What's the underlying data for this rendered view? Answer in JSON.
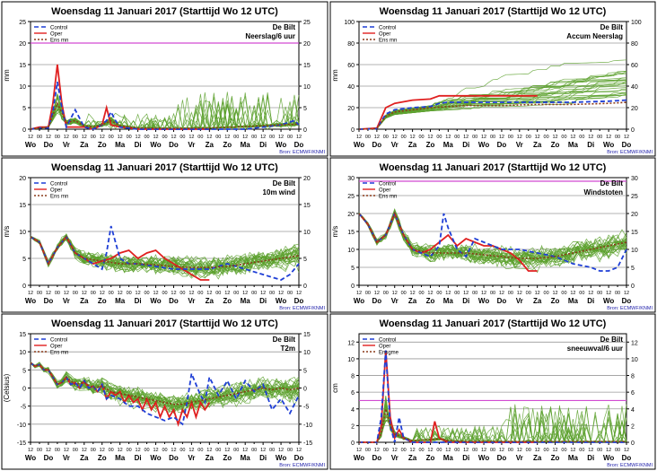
{
  "chart_data": [
    {
      "type": "line",
      "title": "Woensdag 11 Januari 2017    (Starttijd Wo 12 UTC)",
      "station": "De Bilt",
      "variable": "Neerslag/6 uur",
      "ylabel": "mm",
      "source": "Bron: ECMWF/KNMI",
      "ylim": [
        0,
        25
      ],
      "yticks": [
        0,
        5,
        10,
        15,
        20,
        25
      ],
      "threshold": 20,
      "legend": [
        "Control",
        "Oper",
        "Ens mn"
      ],
      "days": [
        "Wo",
        "Do",
        "Vr",
        "Za",
        "Zo",
        "Ma",
        "Di",
        "Wo",
        "Do",
        "Vr",
        "Za",
        "Zo",
        "Ma",
        "Di",
        "Wo",
        "Do"
      ],
      "hours": [
        "12",
        "00",
        "12"
      ],
      "series": [
        {
          "name": "Oper",
          "x": [
            0,
            0.5,
            1,
            1.25,
            1.5,
            1.75,
            2,
            2.5,
            3,
            3.5,
            4,
            4.25,
            4.5,
            5,
            5.5,
            6,
            7,
            8,
            9,
            10
          ],
          "values": [
            0,
            0.5,
            0.5,
            6,
            15,
            6,
            0.5,
            0.5,
            0.5,
            0,
            1,
            5,
            1,
            0.5,
            0.3,
            0,
            0,
            0,
            0,
            0
          ]
        },
        {
          "name": "Control",
          "x": [
            0,
            0.5,
            1,
            1.25,
            1.5,
            1.75,
            2,
            2.5,
            3,
            3.5,
            4,
            4.25,
            4.5,
            4.75,
            5,
            6,
            8,
            10,
            12,
            13,
            14,
            14.75,
            15
          ],
          "values": [
            0,
            0.3,
            0.3,
            4,
            11,
            5,
            0.5,
            4.5,
            0.5,
            0,
            1,
            2,
            4,
            2,
            0.5,
            0,
            0,
            0,
            0,
            0.5,
            1,
            2,
            1
          ]
        },
        {
          "name": "Ens mn",
          "x": [
            0,
            0.5,
            1,
            1.5,
            2,
            2.5,
            3,
            3.5,
            4,
            4.5,
            5,
            6,
            8,
            10,
            12,
            14,
            15
          ],
          "values": [
            0,
            0.3,
            0.5,
            6,
            1.5,
            2,
            0.8,
            0.5,
            1,
            2,
            0.8,
            0.3,
            0.2,
            0.3,
            0.6,
            1,
            1.2
          ]
        }
      ]
    },
    {
      "type": "line",
      "title": "Woensdag 11 Januari 2017    (Starttijd Wo 12 UTC)",
      "station": "De Bilt",
      "variable": "Accum Neerslag",
      "ylabel": "mm",
      "source": "Bron: ECMWF/KNMI",
      "ylim": [
        0,
        100
      ],
      "yticks": [
        0,
        20,
        40,
        60,
        80,
        100
      ],
      "legend": [
        "Control",
        "Oper",
        "Ens mn"
      ],
      "days": [
        "Wo",
        "Do",
        "Vr",
        "Za",
        "Zo",
        "Ma",
        "Di",
        "Wo",
        "Do",
        "Vr",
        "Za",
        "Zo",
        "Ma",
        "Di",
        "Wo",
        "Do"
      ],
      "hours": [
        "12",
        "00",
        "12"
      ],
      "series": [
        {
          "name": "Oper",
          "x": [
            0,
            1,
            1.5,
            2,
            3,
            4,
            4.5,
            5,
            10
          ],
          "values": [
            0,
            1,
            20,
            24,
            27,
            28,
            31,
            31,
            31
          ]
        },
        {
          "name": "Control",
          "x": [
            0,
            1,
            1.5,
            2,
            3,
            4,
            4.5,
            5,
            6,
            8,
            10,
            12,
            14,
            15
          ],
          "values": [
            0,
            0.5,
            14,
            18,
            20,
            21,
            24,
            25,
            25,
            25,
            25,
            25,
            26,
            27
          ]
        },
        {
          "name": "Ens mn",
          "x": [
            0,
            1,
            1.5,
            2,
            3,
            4,
            5,
            6,
            8,
            10,
            12,
            14,
            15
          ],
          "values": [
            0,
            0.5,
            12,
            16,
            18,
            20,
            21,
            22,
            22,
            23,
            23,
            24,
            25
          ]
        }
      ]
    },
    {
      "type": "line",
      "title": "Woensdag 11 Januari 2017    (Starttijd Wo 12 UTC)",
      "station": "De Bilt",
      "variable": "10m wind",
      "ylabel": "m/s",
      "source": "Bron: ECMWF/KNMI",
      "ylim": [
        0,
        20
      ],
      "yticks": [
        0,
        5,
        10,
        15,
        20
      ],
      "legend": [
        "Control",
        "Oper",
        "Ens mn"
      ],
      "days": [
        "Wo",
        "Do",
        "Vr",
        "Za",
        "Zo",
        "Ma",
        "Di",
        "Wo",
        "Do",
        "Vr",
        "Za",
        "Zo",
        "Ma",
        "Di",
        "Wo",
        "Do"
      ],
      "hours": [
        "12",
        "00",
        "12"
      ],
      "series": [
        {
          "name": "Oper",
          "x": [
            0,
            0.5,
            1,
            1.5,
            2,
            2.5,
            3,
            3.5,
            4,
            4.5,
            5,
            5.5,
            6,
            6.5,
            7,
            7.5,
            8,
            8.5,
            9,
            9.5,
            10
          ],
          "values": [
            9,
            8,
            4,
            7,
            9,
            6,
            5,
            4,
            4.5,
            5,
            6,
            6.5,
            5,
            6,
            6.5,
            5,
            4,
            3,
            2,
            1,
            1
          ]
        },
        {
          "name": "Control",
          "x": [
            0,
            0.5,
            1,
            1.5,
            2,
            2.5,
            3,
            3.5,
            4,
            4.25,
            4.5,
            5,
            5.5,
            6,
            7,
            8,
            9,
            10,
            11,
            12,
            13,
            13.5,
            14,
            14.5,
            15
          ],
          "values": [
            9,
            8,
            4,
            7,
            9,
            6,
            5,
            4,
            3,
            6,
            11,
            5,
            4,
            4,
            3.5,
            3,
            3,
            3,
            4,
            3,
            2,
            1.5,
            1,
            2,
            4
          ]
        },
        {
          "name": "Ens mn",
          "x": [
            0,
            0.5,
            1,
            1.5,
            2,
            2.5,
            3,
            4,
            5,
            6,
            7,
            8,
            9,
            10,
            11,
            12,
            13,
            14,
            15
          ],
          "values": [
            9,
            8,
            4,
            7,
            9,
            6,
            5,
            4.5,
            4,
            4,
            3.8,
            3.5,
            3.3,
            3.3,
            3.5,
            4,
            4.5,
            5,
            5.5
          ]
        }
      ]
    },
    {
      "type": "line",
      "title": "Woensdag 11 Januari 2017    (Starttijd Wo 12 UTC)",
      "station": "De Bilt",
      "variable": "Windstoten",
      "ylabel": "m/s",
      "source": "Bron: ECMWF/KNMI",
      "ylim": [
        0,
        30
      ],
      "yticks": [
        0,
        5,
        10,
        15,
        20,
        25,
        30
      ],
      "threshold": 29,
      "legend": [
        "Control",
        "Oper",
        "Ens mn"
      ],
      "days": [
        "Wo",
        "Do",
        "Vr",
        "Za",
        "Zo",
        "Ma",
        "Di",
        "Wo",
        "Do",
        "Vr",
        "Za",
        "Zo",
        "Ma",
        "Di",
        "Wo",
        "Do"
      ],
      "hours": [
        "12",
        "00",
        "12"
      ],
      "series": [
        {
          "name": "Oper",
          "x": [
            0,
            0.5,
            1,
            1.5,
            2,
            2.5,
            3,
            3.5,
            4,
            4.5,
            5,
            5.5,
            6,
            6.5,
            7,
            7.5,
            8,
            8.5,
            9,
            9.5,
            10
          ],
          "values": [
            20,
            17,
            12,
            14,
            20,
            14,
            10,
            9,
            10,
            12,
            14,
            11,
            13,
            12,
            11,
            11,
            10,
            9,
            7,
            4,
            4
          ]
        },
        {
          "name": "Control",
          "x": [
            0,
            0.5,
            1,
            1.5,
            2,
            2.5,
            3,
            3.5,
            4,
            4.5,
            4.75,
            5,
            5.5,
            6,
            6.5,
            7,
            8,
            9,
            10,
            11,
            12,
            13,
            13.5,
            14,
            14.5,
            15
          ],
          "values": [
            20,
            17,
            12,
            14,
            20,
            14,
            10,
            9,
            8,
            11,
            20,
            16,
            10,
            8,
            13,
            12,
            10,
            10,
            9,
            8,
            6,
            5,
            4,
            4,
            5,
            10
          ]
        },
        {
          "name": "Ens mn",
          "x": [
            0,
            0.5,
            1,
            1.5,
            2,
            2.5,
            3,
            4,
            5,
            6,
            7,
            8,
            9,
            10,
            11,
            12,
            13,
            14,
            15
          ],
          "values": [
            20,
            17,
            12,
            14,
            20,
            14,
            10,
            9,
            9,
            9,
            8.5,
            8,
            7.5,
            7.5,
            8,
            9,
            10,
            11,
            12
          ]
        }
      ]
    },
    {
      "type": "line",
      "title": "Woensdag 11 Januari 2017    (Starttijd Wo 12 UTC)",
      "station": "De Bilt",
      "variable": "T2m",
      "ylabel": "(Celsius)",
      "source": "Bron: ECMWF/KNMI",
      "ylim": [
        -15,
        15
      ],
      "yticks": [
        -15,
        -10,
        -5,
        0,
        5,
        10,
        15
      ],
      "legend": [
        "Control",
        "Oper",
        "Ens mn"
      ],
      "days": [
        "Wo",
        "Do",
        "Vr",
        "Za",
        "Zo",
        "Ma",
        "Di",
        "Wo",
        "Do",
        "Vr",
        "Za",
        "Zo",
        "Ma",
        "Di",
        "Wo",
        "Do"
      ],
      "hours": [
        "12",
        "00",
        "12"
      ],
      "series": [
        {
          "name": "Oper",
          "x": [
            0,
            0.25,
            0.5,
            0.75,
            1,
            1.25,
            1.5,
            1.75,
            2,
            2.25,
            2.5,
            2.75,
            3,
            3.25,
            3.5,
            3.75,
            4,
            4.25,
            4.5,
            4.75,
            5,
            5.25,
            5.5,
            5.75,
            6,
            6.25,
            6.5,
            6.75,
            7,
            7.25,
            7.5,
            7.75,
            8,
            8.25,
            8.5,
            8.75,
            9,
            9.25,
            9.5,
            9.75,
            10
          ],
          "values": [
            7,
            6,
            6.5,
            5,
            5,
            3,
            1,
            1.5,
            3,
            1,
            1.5,
            0,
            2,
            0,
            0.5,
            -1,
            1,
            -3,
            -1,
            -2,
            -1,
            -4,
            -2,
            -4,
            -3,
            -6,
            -3,
            -6,
            -4,
            -8,
            -5,
            -8,
            -6,
            -10,
            -6,
            -8,
            -4,
            -8,
            -4,
            -6,
            -4
          ]
        },
        {
          "name": "Control",
          "x": [
            0,
            0.25,
            0.5,
            0.75,
            1,
            1.25,
            1.5,
            1.75,
            2,
            2.25,
            2.5,
            2.75,
            3,
            3.25,
            3.5,
            3.75,
            4,
            4.25,
            4.5,
            5,
            5.5,
            6,
            6.5,
            7,
            7.5,
            8,
            8.5,
            8.75,
            9,
            9.5,
            9.75,
            10,
            10.5,
            11,
            11.5,
            12,
            12.5,
            13,
            13.5,
            14,
            14.5,
            15
          ],
          "values": [
            7,
            6,
            6.5,
            5,
            5,
            3,
            1,
            1.5,
            3,
            1,
            1.5,
            0,
            2,
            0,
            0.5,
            -1,
            1,
            -3,
            -2,
            -3,
            -5,
            -5,
            -7,
            -8,
            -9,
            -8,
            -10,
            -4,
            4,
            -2,
            -4,
            3,
            -2,
            2,
            -3,
            2,
            -1,
            1,
            -6,
            -3,
            -7,
            -2
          ]
        },
        {
          "name": "Ens mn",
          "x": [
            0,
            0.25,
            0.5,
            0.75,
            1,
            1.25,
            1.5,
            1.75,
            2,
            2.5,
            3,
            3.5,
            4,
            4.5,
            5,
            5.5,
            6,
            6.5,
            7,
            7.5,
            8,
            8.5,
            9,
            9.5,
            10,
            10.5,
            11,
            11.5,
            12,
            12.5,
            13,
            13.5,
            14,
            14.5,
            15
          ],
          "values": [
            7,
            6,
            6.5,
            5,
            5,
            3,
            1,
            1.5,
            3,
            1,
            1.5,
            0,
            0.5,
            -1,
            -1.5,
            -2,
            -2.5,
            -3,
            -3.5,
            -4,
            -4.5,
            -4.5,
            -4,
            -3.5,
            -3,
            -2.5,
            -2,
            -1.5,
            -1,
            -0.5,
            0,
            -0.5,
            0,
            -0.5,
            0
          ]
        }
      ]
    },
    {
      "type": "line",
      "title": "Woensdag 11 Januari 2017    (Starttijd Wo 12 UTC)",
      "station": "De Bilt",
      "variable": "sneeuwval/6 uur",
      "ylabel": "cm",
      "source": "Bron: ECMWF/KNMI",
      "ylim": [
        0,
        13
      ],
      "yticks": [
        0,
        2,
        4,
        6,
        8,
        10,
        12
      ],
      "threshold": 5,
      "legend": [
        "Control",
        "Oper",
        "Ensgme"
      ],
      "days": [
        "Wo",
        "Do",
        "Vr",
        "Za",
        "Zo",
        "Ma",
        "Di",
        "Wo",
        "Do",
        "Vr",
        "Za",
        "Zo",
        "Ma",
        "Di",
        "Wo",
        "Do"
      ],
      "hours": [
        "12",
        "00",
        "12"
      ],
      "series": [
        {
          "name": "Oper",
          "x": [
            0,
            1,
            1.25,
            1.5,
            1.75,
            2,
            2.25,
            2.5,
            3,
            3.5,
            4,
            4.25,
            4.5,
            5,
            6,
            8,
            10
          ],
          "values": [
            0,
            0,
            2,
            11,
            3,
            0.5,
            1.5,
            0.5,
            0,
            0,
            0,
            2.5,
            0.5,
            0,
            0,
            0,
            0
          ]
        },
        {
          "name": "Control",
          "x": [
            0,
            1,
            1.25,
            1.5,
            1.75,
            2,
            2.25,
            2.5,
            3,
            4,
            5,
            6,
            8,
            10,
            12,
            14,
            15
          ],
          "values": [
            0,
            0,
            3,
            11,
            2,
            0,
            3,
            0.5,
            0,
            0,
            0,
            0,
            0,
            0,
            0,
            0,
            0
          ]
        },
        {
          "name": "Ens mn",
          "x": [
            0,
            1,
            1.25,
            1.5,
            1.75,
            2,
            2.5,
            3,
            4,
            4.5,
            5,
            6,
            8,
            10,
            12,
            14,
            15
          ],
          "values": [
            0,
            0,
            1,
            4,
            2,
            1,
            0.5,
            0.2,
            0.3,
            0.4,
            0.2,
            0.1,
            0.1,
            0.1,
            0.1,
            0.1,
            0.1
          ]
        }
      ]
    }
  ]
}
